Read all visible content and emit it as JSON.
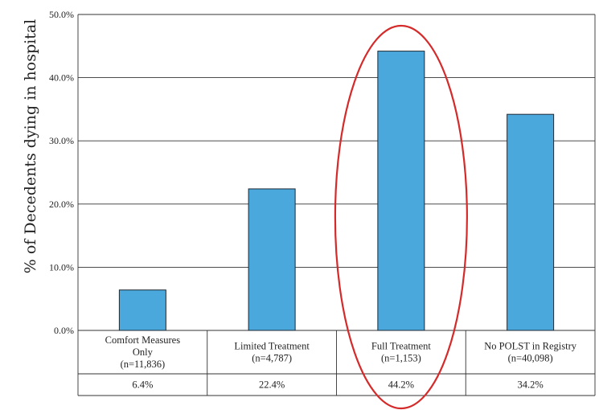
{
  "chart_data": {
    "type": "bar",
    "ylabel": "% of Decedents dying in hospital",
    "ylim": [
      0,
      50
    ],
    "y_ticks": [
      "0.0%",
      "10.0%",
      "20.0%",
      "30.0%",
      "40.0%",
      "50.0%"
    ],
    "y_tick_values": [
      0,
      10,
      20,
      30,
      40,
      50
    ],
    "grid": "horizontal",
    "categories": [
      {
        "lines": [
          "Comfort Measures",
          "Only",
          "(n=11,836)"
        ],
        "value": 6.4,
        "value_label": "6.4%"
      },
      {
        "lines": [
          "Limited Treatment",
          "(n=4,787)"
        ],
        "value": 22.4,
        "value_label": "22.4%"
      },
      {
        "lines": [
          "Full Treatment",
          "(n=1,153)"
        ],
        "value": 44.2,
        "value_label": "44.2%"
      },
      {
        "lines": [
          "No POLST in Registry",
          "(n=40,098)"
        ],
        "value": 34.2,
        "value_label": "34.2%"
      }
    ],
    "colors": {
      "bar": "#4aa8dc",
      "bar_edge": "#1e2a33",
      "highlight": "#d42a2a",
      "grid": "#333333"
    },
    "annotation": {
      "type": "ellipse-highlight",
      "category_index": 2
    }
  }
}
